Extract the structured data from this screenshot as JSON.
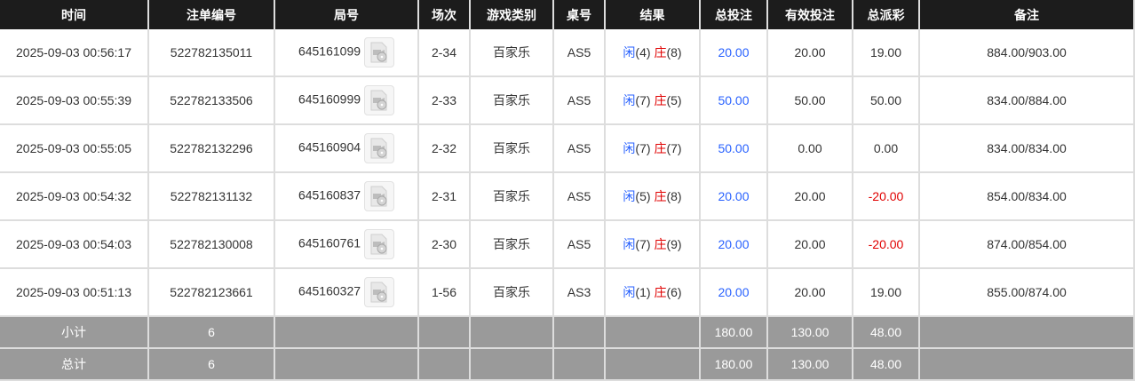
{
  "headers": [
    "时间",
    "注单编号",
    "局号",
    "场次",
    "游戏类别",
    "桌号",
    "结果",
    "总投注",
    "有效投注",
    "总派彩",
    "备注"
  ],
  "rows": [
    {
      "time": "2025-09-03 00:56:17",
      "bet_id": "522782135011",
      "round": "645161099",
      "shoe": "2-34",
      "game": "百家乐",
      "table": "AS5",
      "player_label": "闲",
      "player": "(4)",
      "banker_label": "庄",
      "banker": "(8)",
      "total_bet": "20.00",
      "valid_bet": "20.00",
      "payout": "19.00",
      "payout_negative": false,
      "note": "884.00/903.00"
    },
    {
      "time": "2025-09-03 00:55:39",
      "bet_id": "522782133506",
      "round": "645160999",
      "shoe": "2-33",
      "game": "百家乐",
      "table": "AS5",
      "player_label": "闲",
      "player": "(7)",
      "banker_label": "庄",
      "banker": "(5)",
      "total_bet": "50.00",
      "valid_bet": "50.00",
      "payout": "50.00",
      "payout_negative": false,
      "note": "834.00/884.00"
    },
    {
      "time": "2025-09-03 00:55:05",
      "bet_id": "522782132296",
      "round": "645160904",
      "shoe": "2-32",
      "game": "百家乐",
      "table": "AS5",
      "player_label": "闲",
      "player": "(7)",
      "banker_label": "庄",
      "banker": "(7)",
      "total_bet": "50.00",
      "valid_bet": "0.00",
      "payout": "0.00",
      "payout_negative": false,
      "note": "834.00/834.00"
    },
    {
      "time": "2025-09-03 00:54:32",
      "bet_id": "522782131132",
      "round": "645160837",
      "shoe": "2-31",
      "game": "百家乐",
      "table": "AS5",
      "player_label": "闲",
      "player": "(5)",
      "banker_label": "庄",
      "banker": "(8)",
      "total_bet": "20.00",
      "valid_bet": "20.00",
      "payout": "-20.00",
      "payout_negative": true,
      "note": "854.00/834.00"
    },
    {
      "time": "2025-09-03 00:54:03",
      "bet_id": "522782130008",
      "round": "645160761",
      "shoe": "2-30",
      "game": "百家乐",
      "table": "AS5",
      "player_label": "闲",
      "player": "(7)",
      "banker_label": "庄",
      "banker": "(9)",
      "total_bet": "20.00",
      "valid_bet": "20.00",
      "payout": "-20.00",
      "payout_negative": true,
      "note": "874.00/854.00"
    },
    {
      "time": "2025-09-03 00:51:13",
      "bet_id": "522782123661",
      "round": "645160327",
      "shoe": "1-56",
      "game": "百家乐",
      "table": "AS3",
      "player_label": "闲",
      "player": "(1)",
      "banker_label": "庄",
      "banker": "(6)",
      "total_bet": "20.00",
      "valid_bet": "20.00",
      "payout": "19.00",
      "payout_negative": false,
      "note": "855.00/874.00"
    }
  ],
  "subtotal": {
    "label": "小计",
    "count": "6",
    "total_bet": "180.00",
    "valid_bet": "130.00",
    "payout": "48.00"
  },
  "total": {
    "label": "总计",
    "count": "6",
    "total_bet": "180.00",
    "valid_bet": "130.00",
    "payout": "48.00"
  },
  "colors": {
    "header_bg": "#1c1c1c",
    "player": "#2962ff",
    "banker": "#e00000",
    "summary_bg": "#9a9a9a"
  },
  "icons": {
    "replay": "video-file-icon"
  }
}
